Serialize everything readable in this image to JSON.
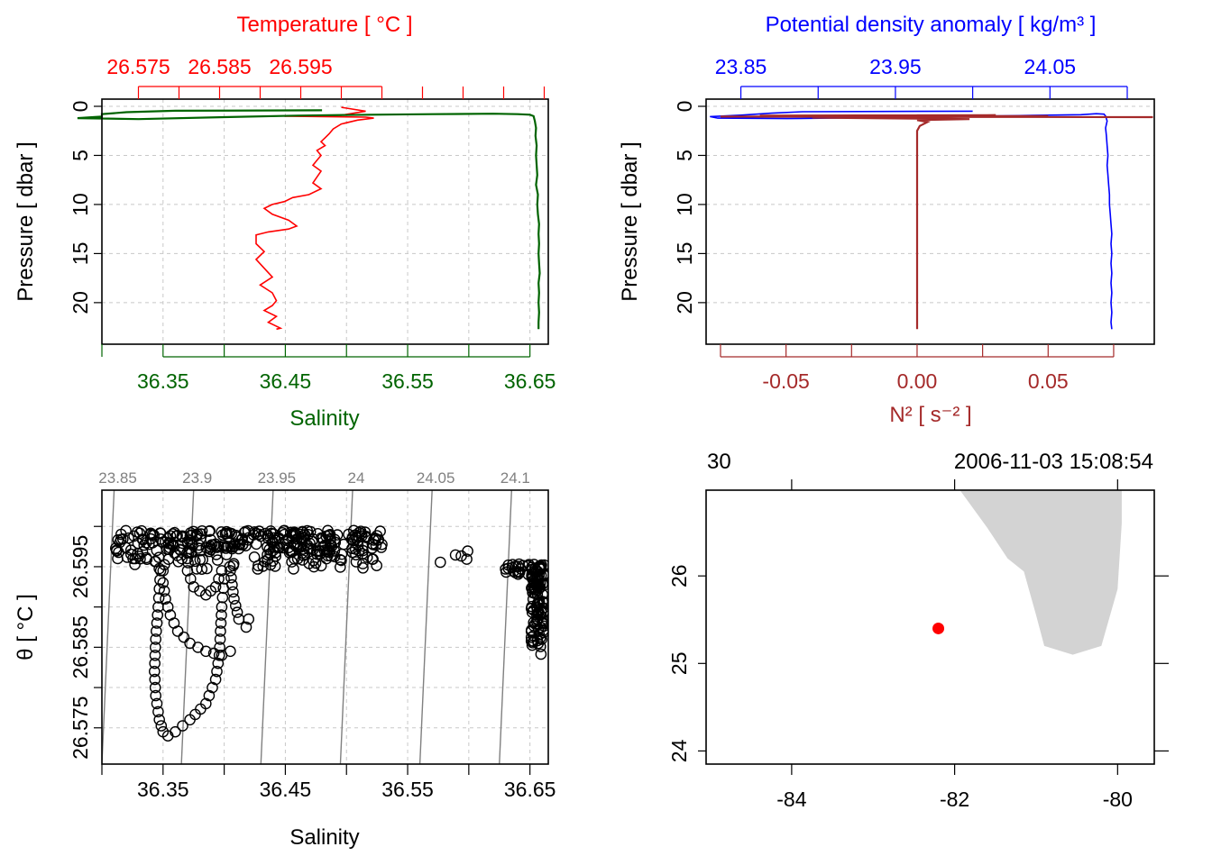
{
  "colors": {
    "temperature": "#ff0000",
    "salinity": "#006400",
    "density": "#0000ff",
    "n2": "#a52a2a",
    "isopycnal": "#808080",
    "land": "#d3d3d3",
    "station": "#ff0000",
    "grid": "#c8c8c8"
  },
  "chart_data": [
    {
      "type": "line",
      "panel": "top-left",
      "title": "Temperature [ °C ]",
      "xlabel": "Salinity",
      "ylabel": "Pressure [ dbar ]",
      "y_range": [
        0,
        23.5
      ],
      "y_reversed": true,
      "y_ticks": [
        "0",
        "5",
        "10",
        "15",
        "20"
      ],
      "top_axis": {
        "quantity": "temperature",
        "range": [
          26.5705,
          26.6255
        ],
        "tick_labels": [
          "26.575",
          "26.585",
          "26.595"
        ]
      },
      "bottom_axis": {
        "quantity": "salinity",
        "range": [
          36.3,
          36.665
        ],
        "tick_labels": [
          "36.35",
          "36.45",
          "36.55",
          "36.65"
        ]
      },
      "grid": true,
      "series": [
        {
          "quantity": "temperature",
          "points": [
            [
              26.6,
              0.1
            ],
            [
              26.603,
              0.5
            ],
            [
              26.6,
              0.9
            ],
            [
              26.593,
              1.0
            ],
            [
              26.603,
              1.1
            ],
            [
              26.604,
              1.2
            ],
            [
              26.602,
              1.4
            ],
            [
              26.6,
              1.8
            ],
            [
              26.599,
              2.3
            ],
            [
              26.5985,
              2.8
            ],
            [
              26.598,
              3.2
            ],
            [
              26.5975,
              3.6
            ],
            [
              26.598,
              4.0
            ],
            [
              26.597,
              4.5
            ],
            [
              26.5975,
              5.0
            ],
            [
              26.597,
              5.5
            ],
            [
              26.5965,
              6.0
            ],
            [
              26.5975,
              6.6
            ],
            [
              26.597,
              7.2
            ],
            [
              26.5965,
              7.8
            ],
            [
              26.5975,
              8.4
            ],
            [
              26.596,
              9.0
            ],
            [
              26.594,
              9.3
            ],
            [
              26.593,
              9.7
            ],
            [
              26.5915,
              10.0
            ],
            [
              26.5905,
              10.4
            ],
            [
              26.5915,
              11.0
            ],
            [
              26.5935,
              11.6
            ],
            [
              26.5945,
              12.2
            ],
            [
              26.5935,
              12.5
            ],
            [
              26.591,
              12.8
            ],
            [
              26.5895,
              13.1
            ],
            [
              26.5895,
              14.0
            ],
            [
              26.5905,
              14.8
            ],
            [
              26.5895,
              15.6
            ],
            [
              26.5905,
              16.5
            ],
            [
              26.5915,
              17.4
            ],
            [
              26.59,
              18.2
            ],
            [
              26.5915,
              19.0
            ],
            [
              26.592,
              19.8
            ],
            [
              26.5915,
              20.3
            ],
            [
              26.5905,
              20.8
            ],
            [
              26.592,
              21.4
            ],
            [
              26.591,
              22.0
            ],
            [
              26.5925,
              22.6
            ],
            [
              26.592,
              22.7
            ]
          ]
        },
        {
          "quantity": "salinity",
          "points": [
            [
              36.48,
              0.4
            ],
            [
              36.36,
              0.45
            ],
            [
              36.32,
              0.6
            ],
            [
              36.3,
              0.8
            ],
            [
              36.3,
              1.05
            ],
            [
              36.28,
              1.2
            ],
            [
              36.33,
              1.3
            ],
            [
              36.4,
              1.1
            ],
            [
              36.46,
              0.95
            ],
            [
              36.52,
              0.85
            ],
            [
              36.57,
              0.8
            ],
            [
              36.62,
              0.75
            ],
            [
              36.64,
              0.8
            ],
            [
              36.65,
              0.85
            ],
            [
              36.653,
              1.0
            ],
            [
              36.654,
              1.5
            ],
            [
              36.655,
              2.2
            ],
            [
              36.6545,
              3.0
            ],
            [
              36.6555,
              4.0
            ],
            [
              36.655,
              5.0
            ],
            [
              36.6555,
              6.0
            ],
            [
              36.656,
              7.0
            ],
            [
              36.655,
              8.0
            ],
            [
              36.6565,
              9.0
            ],
            [
              36.656,
              10.0
            ],
            [
              36.6565,
              11.0
            ],
            [
              36.6575,
              12.0
            ],
            [
              36.657,
              13.0
            ],
            [
              36.6575,
              14.0
            ],
            [
              36.657,
              15.0
            ],
            [
              36.6575,
              16.0
            ],
            [
              36.658,
              17.0
            ],
            [
              36.657,
              18.0
            ],
            [
              36.6575,
              19.0
            ],
            [
              36.657,
              20.0
            ],
            [
              36.6575,
              21.0
            ],
            [
              36.657,
              22.0
            ],
            [
              36.657,
              22.7
            ]
          ]
        }
      ]
    },
    {
      "type": "line",
      "panel": "top-right",
      "title": "Potential density anomaly [ kg/m³ ]",
      "xlabel": "N² [ s⁻² ]",
      "ylabel": "Pressure [ dbar ]",
      "y_range": [
        0,
        23.5
      ],
      "y_reversed": true,
      "y_ticks": [
        "0",
        "5",
        "10",
        "15",
        "20"
      ],
      "top_axis": {
        "quantity": "density",
        "range": [
          23.8275,
          24.1175
        ],
        "tick_labels": [
          "23.85",
          "23.95",
          "24.05"
        ]
      },
      "bottom_axis": {
        "quantity": "N2",
        "range": [
          -0.0805,
          0.0905
        ],
        "tick_labels": [
          "-0.05",
          "0.00",
          "0.05"
        ]
      },
      "grid": true,
      "series": [
        {
          "quantity": "density",
          "points": [
            [
              24.0,
              0.5
            ],
            [
              23.89,
              0.55
            ],
            [
              23.87,
              0.7
            ],
            [
              23.85,
              0.9
            ],
            [
              23.83,
              1.05
            ],
            [
              23.835,
              1.2
            ],
            [
              23.88,
              1.25
            ],
            [
              23.96,
              1.1
            ],
            [
              24.03,
              0.95
            ],
            [
              24.07,
              0.85
            ],
            [
              24.08,
              0.75
            ],
            [
              24.085,
              0.8
            ],
            [
              24.086,
              1.0
            ],
            [
              24.087,
              1.5
            ],
            [
              24.086,
              2.2
            ],
            [
              24.0865,
              3.0
            ],
            [
              24.087,
              4.0
            ],
            [
              24.0875,
              5.0
            ],
            [
              24.087,
              6.0
            ],
            [
              24.0875,
              7.0
            ],
            [
              24.088,
              8.0
            ],
            [
              24.0885,
              9.0
            ],
            [
              24.0885,
              10.0
            ],
            [
              24.089,
              11.0
            ],
            [
              24.0895,
              12.0
            ],
            [
              24.09,
              13.0
            ],
            [
              24.0895,
              14.0
            ],
            [
              24.09,
              15.0
            ],
            [
              24.0895,
              16.0
            ],
            [
              24.09,
              17.0
            ],
            [
              24.0895,
              18.0
            ],
            [
              24.09,
              19.0
            ],
            [
              24.0895,
              20.0
            ],
            [
              24.09,
              21.0
            ],
            [
              24.0895,
              22.0
            ],
            [
              24.09,
              22.7
            ]
          ]
        },
        {
          "quantity": "N2",
          "points": [
            [
              0.09,
              1.1
            ],
            [
              -0.075,
              1.05
            ],
            [
              0.05,
              1.0
            ],
            [
              -0.06,
              0.95
            ],
            [
              0.03,
              0.9
            ],
            [
              -0.04,
              1.15
            ],
            [
              0.02,
              1.3
            ],
            [
              0.0,
              1.4
            ],
            [
              0.004,
              1.6
            ],
            [
              0.001,
              2.0
            ],
            [
              0.0,
              2.5
            ],
            [
              0.0,
              3.0
            ],
            [
              0.0,
              22.7
            ]
          ]
        }
      ]
    },
    {
      "type": "scatter",
      "panel": "bottom-left",
      "xlabel": "Salinity",
      "ylabel": "θ [ °C ]",
      "x_range": [
        36.3,
        36.665
      ],
      "y_range": [
        26.5705,
        26.6045
      ],
      "x_tick_labels": [
        "36.35",
        "36.45",
        "36.55",
        "36.65"
      ],
      "y_tick_labels": [
        "26.575",
        "26.585",
        "26.595"
      ],
      "grid": true,
      "isopycnals": [
        {
          "label": "23.85",
          "x_top": 36.31,
          "x_bottom": 36.3
        },
        {
          "label": "23.9",
          "x_top": 36.375,
          "x_bottom": 36.365
        },
        {
          "label": "23.95",
          "x_top": 36.44,
          "x_bottom": 36.43
        },
        {
          "label": "24",
          "x_top": 36.505,
          "x_bottom": 36.495
        },
        {
          "label": "24.05",
          "x_top": 36.57,
          "x_bottom": 36.56
        },
        {
          "label": "24.1",
          "x_top": 36.635,
          "x_bottom": 36.625
        }
      ],
      "clusters": [
        {
          "x": [
            36.31,
            36.53
          ],
          "y": [
            26.5945,
            26.5995
          ],
          "n": 340
        },
        {
          "x": [
            36.57,
            36.6
          ],
          "y": [
            26.5955,
            26.5975
          ],
          "n": 5
        },
        {
          "x": [
            36.63,
            36.651
          ],
          "y": [
            26.594,
            26.5955
          ],
          "n": 20
        },
        {
          "x": [
            36.651,
            36.662
          ],
          "y": [
            26.584,
            26.5955
          ],
          "n": 110
        }
      ],
      "paths": [
        [
          [
            36.35,
            26.5945
          ],
          [
            36.35,
            26.593
          ],
          [
            36.352,
            26.591
          ],
          [
            36.356,
            26.589
          ],
          [
            36.362,
            26.587
          ],
          [
            36.372,
            26.5855
          ],
          [
            36.385,
            26.5845
          ],
          [
            36.398,
            26.584
          ],
          [
            36.405,
            26.5845
          ]
        ],
        [
          [
            36.348,
            26.5945
          ],
          [
            36.346,
            26.59
          ],
          [
            36.344,
            26.586
          ],
          [
            36.343,
            26.582
          ],
          [
            36.344,
            26.579
          ],
          [
            36.347,
            26.576
          ],
          [
            36.35,
            26.5745
          ],
          [
            36.354,
            26.574
          ],
          [
            36.36,
            26.5745
          ],
          [
            36.372,
            26.576
          ],
          [
            36.385,
            26.578
          ],
          [
            36.393,
            26.581
          ],
          [
            36.396,
            26.584
          ],
          [
            36.397,
            26.587
          ],
          [
            36.398,
            26.59
          ],
          [
            36.4,
            26.5935
          ]
        ],
        [
          [
            36.37,
            26.5945
          ],
          [
            36.375,
            26.5925
          ],
          [
            36.385,
            26.5915
          ],
          [
            36.393,
            26.5925
          ],
          [
            36.398,
            26.5945
          ]
        ],
        [
          [
            36.405,
            26.5945
          ],
          [
            36.408,
            26.591
          ],
          [
            36.412,
            26.5885
          ],
          [
            36.418,
            26.5875
          ],
          [
            36.42,
            26.5885
          ]
        ]
      ]
    },
    {
      "type": "map",
      "panel": "bottom-right",
      "top_left_label": "30",
      "top_right_label": "2006-11-03 15:08:54",
      "x_range": [
        -85.05,
        -79.55
      ],
      "y_range": [
        23.85,
        26.98
      ],
      "x_tick_labels": [
        "-84",
        "-82",
        "-80"
      ],
      "y_tick_labels": [
        "24",
        "25",
        "26"
      ],
      "station": {
        "lon": -82.2,
        "lat": 25.4
      },
      "land_polygon": [
        [
          -81.95,
          27.0
        ],
        [
          -81.6,
          26.55
        ],
        [
          -81.35,
          26.2
        ],
        [
          -81.15,
          26.05
        ],
        [
          -81.0,
          25.55
        ],
        [
          -80.9,
          25.2
        ],
        [
          -80.55,
          25.1
        ],
        [
          -80.2,
          25.2
        ],
        [
          -80.0,
          25.85
        ],
        [
          -79.95,
          26.6
        ],
        [
          -79.95,
          27.0
        ]
      ]
    }
  ]
}
